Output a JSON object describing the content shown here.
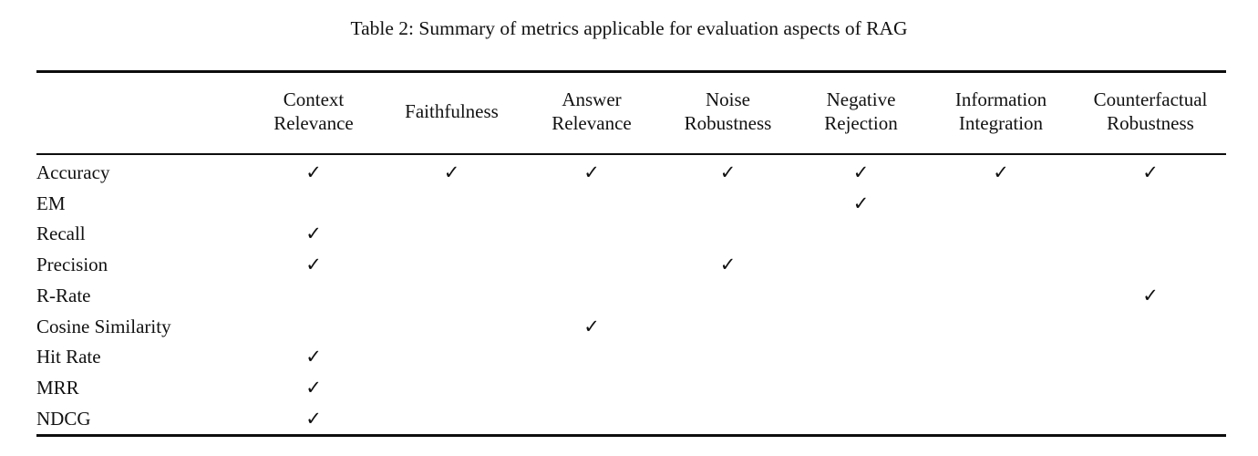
{
  "caption": "Table 2: Summary of metrics applicable for evaluation aspects of RAG",
  "check_symbol": "✓",
  "table": {
    "stub_header": "",
    "columns": [
      "Context Relevance",
      "Faithfulness",
      "Answer Relevance",
      "Noise Robustness",
      "Negative Rejection",
      "Information Integration",
      "Counterfactual Robustness"
    ],
    "rows": [
      {
        "metric": "Accuracy",
        "checks": [
          1,
          1,
          1,
          1,
          1,
          1,
          1
        ]
      },
      {
        "metric": "EM",
        "checks": [
          0,
          0,
          0,
          0,
          1,
          0,
          0
        ]
      },
      {
        "metric": "Recall",
        "checks": [
          1,
          0,
          0,
          0,
          0,
          0,
          0
        ]
      },
      {
        "metric": "Precision",
        "checks": [
          1,
          0,
          0,
          1,
          0,
          0,
          0
        ]
      },
      {
        "metric": "R-Rate",
        "checks": [
          0,
          0,
          0,
          0,
          0,
          0,
          1
        ]
      },
      {
        "metric": "Cosine Similarity",
        "checks": [
          0,
          0,
          1,
          0,
          0,
          0,
          0
        ]
      },
      {
        "metric": "Hit Rate",
        "checks": [
          1,
          0,
          0,
          0,
          0,
          0,
          0
        ]
      },
      {
        "metric": "MRR",
        "checks": [
          1,
          0,
          0,
          0,
          0,
          0,
          0
        ]
      },
      {
        "metric": "NDCG",
        "checks": [
          1,
          0,
          0,
          0,
          0,
          0,
          0
        ]
      }
    ]
  },
  "colors": {
    "background": "#ffffff",
    "text": "#111111",
    "rule": "#0d0d0d"
  }
}
